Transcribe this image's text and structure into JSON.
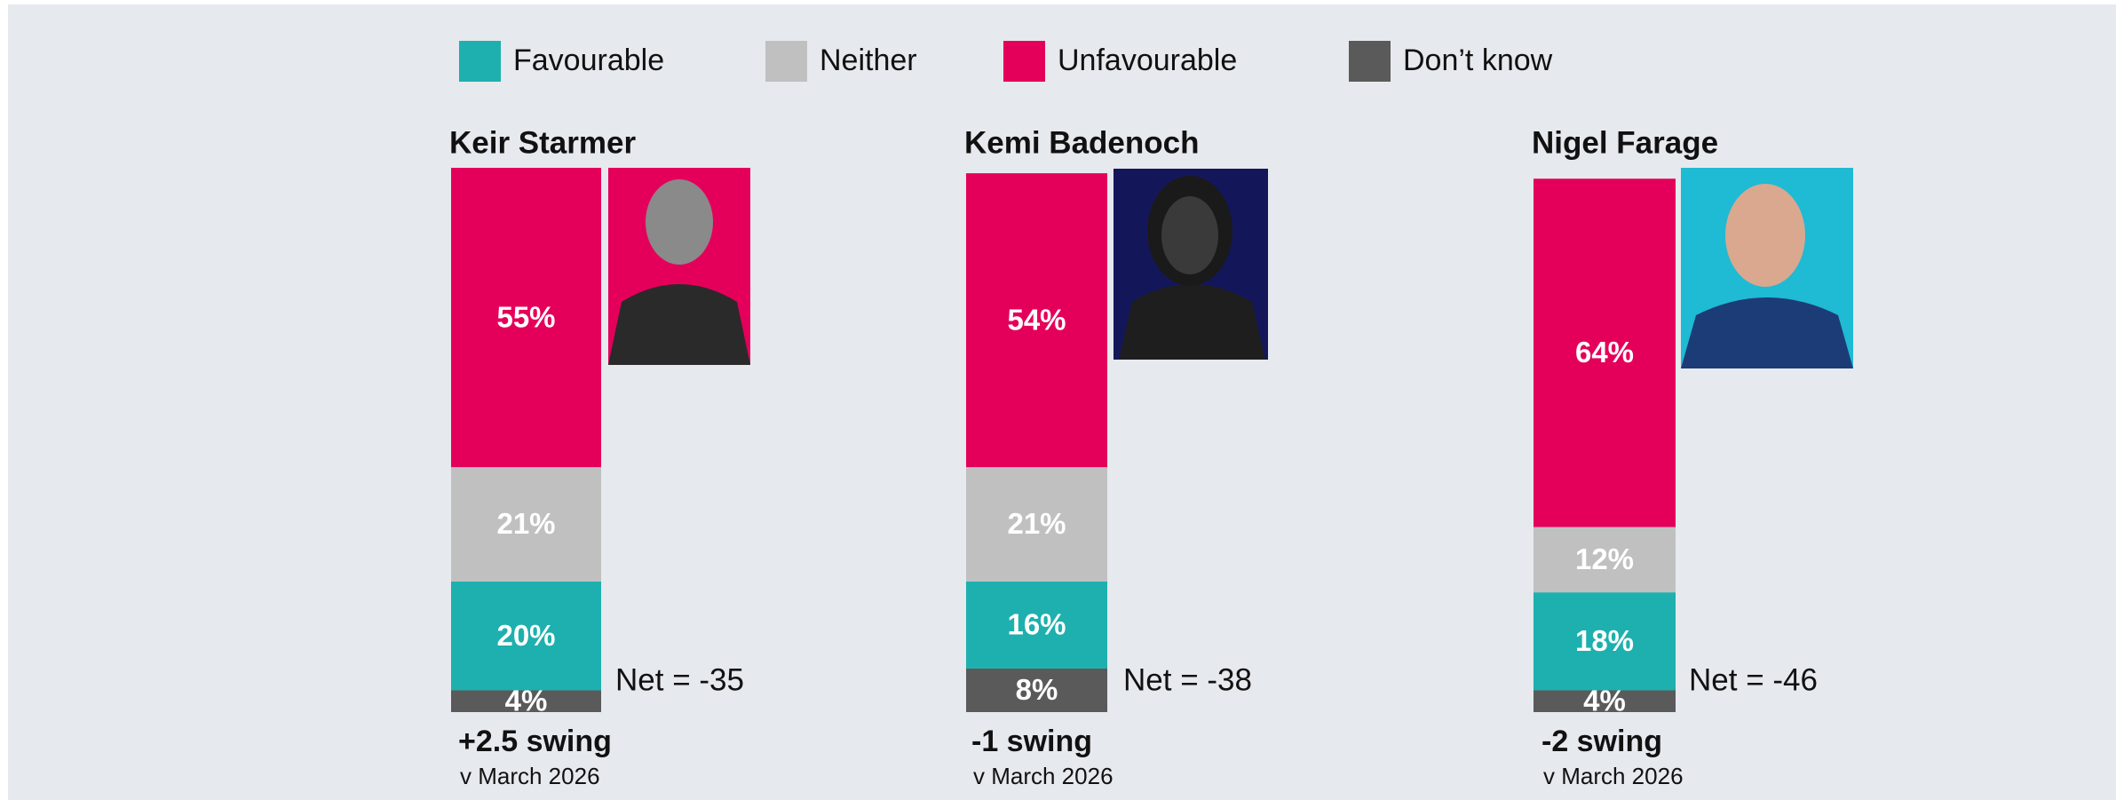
{
  "chart_data": {
    "type": "bar",
    "stacked": true,
    "categories": [
      "Keir Starmer",
      "Kemi Badenoch",
      "Nigel Farage"
    ],
    "series": [
      {
        "name": "Favourable",
        "color": "#1db0ae",
        "values": [
          20,
          16,
          18
        ],
        "value_labels": [
          "20%",
          "16%",
          "18%"
        ]
      },
      {
        "name": "Neither",
        "color": "#c0c0c0",
        "values": [
          21,
          21,
          12
        ],
        "value_labels": [
          "21%",
          "21%",
          "12%"
        ]
      },
      {
        "name": "Unfavourable",
        "color": "#e4005a",
        "values": [
          55,
          54,
          64
        ],
        "value_labels": [
          "55%",
          "54%",
          "64%"
        ]
      },
      {
        "name": "Don’t know",
        "color": "#5a5a5a",
        "values": [
          4,
          8,
          4
        ],
        "value_labels": [
          "4%",
          "8%",
          "4%"
        ]
      }
    ],
    "ylim": [
      0,
      100
    ],
    "net_labels": [
      "Net = -35",
      "Net = -38",
      "Net = -46"
    ],
    "swing_labels": [
      "+2.5 swing",
      "-1 swing",
      "-2 swing"
    ],
    "swing_notes": [
      "v March 2026",
      "v March 2026",
      "v March 2026"
    ]
  }
}
